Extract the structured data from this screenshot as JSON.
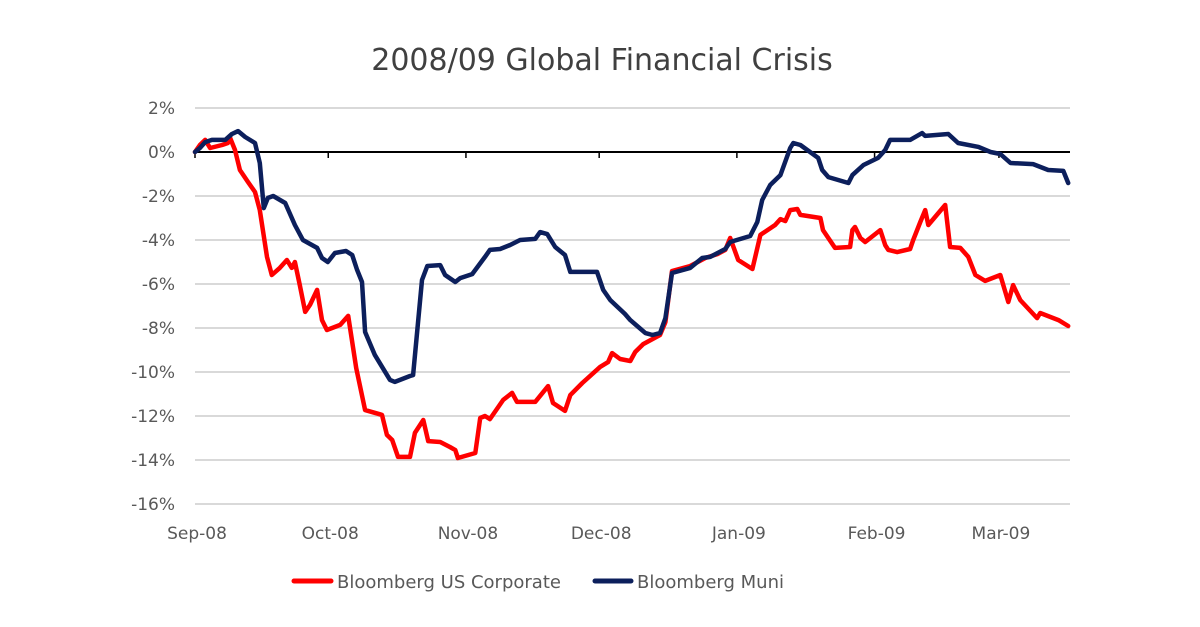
{
  "chart_data": {
    "type": "line",
    "title": "2008/09 Global Financial Crisis",
    "xlabel": "",
    "ylabel": "",
    "x_unit": "days since 1 Sep 2008",
    "xlim": [
      0,
      197
    ],
    "ylim": [
      -16,
      2
    ],
    "y_ticks": [
      2,
      0,
      -2,
      -4,
      -6,
      -8,
      -10,
      -12,
      -14,
      -16
    ],
    "y_tick_labels": [
      "2%",
      "0%",
      "-2%",
      "-4%",
      "-6%",
      "-8%",
      "-10%",
      "-12%",
      "-14%",
      "-16%"
    ],
    "x_ticks": [
      0,
      30,
      61,
      91,
      122,
      153,
      181
    ],
    "x_tick_labels": [
      "Sep-08",
      "Oct-08",
      "Nov-08",
      "Dec-08",
      "Jan-09",
      "Feb-09",
      "Mar-09"
    ],
    "grid": true,
    "legend_position": "bottom",
    "series": [
      {
        "name": "Bloomberg US Corporate",
        "color": "#ff0000",
        "points": [
          [
            0,
            0
          ],
          [
            1.1,
            0.32
          ],
          [
            2.3,
            0.55
          ],
          [
            3.4,
            0.18
          ],
          [
            6.1,
            0.32
          ],
          [
            7.4,
            0.41
          ],
          [
            7.9,
            0.64
          ],
          [
            9.0,
            0.09
          ],
          [
            10.1,
            -0.82
          ],
          [
            11.9,
            -1.36
          ],
          [
            13.5,
            -1.82
          ],
          [
            14.6,
            -2.64
          ],
          [
            16.2,
            -4.77
          ],
          [
            17.3,
            -5.59
          ],
          [
            19.1,
            -5.27
          ],
          [
            20.7,
            -4.91
          ],
          [
            21.8,
            -5.27
          ],
          [
            22.5,
            -5.0
          ],
          [
            23.6,
            -6.05
          ],
          [
            24.8,
            -7.27
          ],
          [
            25.9,
            -6.95
          ],
          [
            27.5,
            -6.27
          ],
          [
            28.6,
            -7.64
          ],
          [
            29.7,
            -8.09
          ],
          [
            32.7,
            -7.86
          ],
          [
            34.5,
            -7.45
          ],
          [
            36.3,
            -9.82
          ],
          [
            38.3,
            -11.73
          ],
          [
            42.1,
            -11.95
          ],
          [
            43.2,
            -12.86
          ],
          [
            44.4,
            -13.09
          ],
          [
            45.7,
            -13.86
          ],
          [
            48.4,
            -13.86
          ],
          [
            49.5,
            -12.77
          ],
          [
            51.4,
            -12.18
          ],
          [
            52.5,
            -13.14
          ],
          [
            55.2,
            -13.18
          ],
          [
            57.4,
            -13.41
          ],
          [
            58.6,
            -13.55
          ],
          [
            59.2,
            -13.91
          ],
          [
            63.1,
            -13.68
          ],
          [
            64.2,
            -12.09
          ],
          [
            65.3,
            -12.0
          ],
          [
            66.4,
            -12.14
          ],
          [
            69.4,
            -11.27
          ],
          [
            71.4,
            -10.95
          ],
          [
            72.5,
            -11.36
          ],
          [
            76.6,
            -11.36
          ],
          [
            79.5,
            -10.64
          ],
          [
            80.6,
            -11.41
          ],
          [
            83.3,
            -11.77
          ],
          [
            84.5,
            -11.05
          ],
          [
            87.2,
            -10.5
          ],
          [
            91.2,
            -9.77
          ],
          [
            93.0,
            -9.55
          ],
          [
            93.9,
            -9.14
          ],
          [
            95.7,
            -9.41
          ],
          [
            98.0,
            -9.5
          ],
          [
            99.1,
            -9.09
          ],
          [
            100.9,
            -8.73
          ],
          [
            104.7,
            -8.32
          ],
          [
            105.9,
            -7.73
          ],
          [
            107.4,
            -5.41
          ],
          [
            111.5,
            -5.18
          ],
          [
            114.9,
            -4.82
          ],
          [
            117.6,
            -4.64
          ],
          [
            119.4,
            -4.45
          ],
          [
            120.5,
            -3.91
          ],
          [
            122.3,
            -4.91
          ],
          [
            125.5,
            -5.32
          ],
          [
            127.3,
            -3.77
          ],
          [
            130.6,
            -3.32
          ],
          [
            131.8,
            -3.05
          ],
          [
            132.9,
            -3.14
          ],
          [
            134.0,
            -2.64
          ],
          [
            135.6,
            -2.59
          ],
          [
            136.3,
            -2.86
          ],
          [
            140.8,
            -3.0
          ],
          [
            141.4,
            -3.55
          ],
          [
            144.1,
            -4.36
          ],
          [
            147.5,
            -4.32
          ],
          [
            148.0,
            -3.55
          ],
          [
            148.6,
            -3.41
          ],
          [
            149.8,
            -3.91
          ],
          [
            150.9,
            -4.09
          ],
          [
            154.3,
            -3.55
          ],
          [
            155.4,
            -4.23
          ],
          [
            156.1,
            -4.45
          ],
          [
            158.1,
            -4.55
          ],
          [
            161.0,
            -4.41
          ],
          [
            161.7,
            -4.0
          ],
          [
            163.3,
            -3.18
          ],
          [
            164.4,
            -2.64
          ],
          [
            165.1,
            -3.32
          ],
          [
            168.9,
            -2.41
          ],
          [
            170.0,
            -4.32
          ],
          [
            172.3,
            -4.36
          ],
          [
            174.1,
            -4.77
          ],
          [
            175.7,
            -5.59
          ],
          [
            177.9,
            -5.86
          ],
          [
            181.3,
            -5.59
          ],
          [
            183.1,
            -6.82
          ],
          [
            184.2,
            -6.05
          ],
          [
            185.8,
            -6.73
          ],
          [
            189.6,
            -7.55
          ],
          [
            190.3,
            -7.32
          ],
          [
            194.4,
            -7.64
          ],
          [
            196.6,
            -7.91
          ]
        ]
      },
      {
        "name": "Bloomberg Muni",
        "color": "#0c1f5c",
        "points": [
          [
            0,
            0
          ],
          [
            1.1,
            0.18
          ],
          [
            2.3,
            0.45
          ],
          [
            3.8,
            0.55
          ],
          [
            6.8,
            0.55
          ],
          [
            8.3,
            0.82
          ],
          [
            9.7,
            0.95
          ],
          [
            11.3,
            0.68
          ],
          [
            13.5,
            0.41
          ],
          [
            14.6,
            -0.5
          ],
          [
            15.5,
            -2.55
          ],
          [
            16.4,
            -2.09
          ],
          [
            17.6,
            -2.0
          ],
          [
            20.3,
            -2.32
          ],
          [
            22.5,
            -3.32
          ],
          [
            24.3,
            -4.0
          ],
          [
            27.5,
            -4.36
          ],
          [
            28.6,
            -4.82
          ],
          [
            29.9,
            -5.0
          ],
          [
            31.5,
            -4.59
          ],
          [
            34.0,
            -4.5
          ],
          [
            35.4,
            -4.68
          ],
          [
            36.5,
            -5.36
          ],
          [
            37.6,
            -5.91
          ],
          [
            38.3,
            -8.18
          ],
          [
            40.5,
            -9.23
          ],
          [
            43.9,
            -10.36
          ],
          [
            45.0,
            -10.45
          ],
          [
            48.4,
            -10.18
          ],
          [
            49.1,
            -10.14
          ],
          [
            51.1,
            -5.82
          ],
          [
            52.3,
            -5.18
          ],
          [
            55.2,
            -5.14
          ],
          [
            56.3,
            -5.59
          ],
          [
            58.6,
            -5.91
          ],
          [
            59.7,
            -5.73
          ],
          [
            62.4,
            -5.55
          ],
          [
            65.3,
            -4.77
          ],
          [
            66.4,
            -4.45
          ],
          [
            68.7,
            -4.41
          ],
          [
            70.9,
            -4.23
          ],
          [
            73.2,
            -4.0
          ],
          [
            76.6,
            -3.95
          ],
          [
            77.7,
            -3.64
          ],
          [
            79.3,
            -3.73
          ],
          [
            81.1,
            -4.32
          ],
          [
            83.3,
            -4.68
          ],
          [
            84.5,
            -5.45
          ],
          [
            90.5,
            -5.45
          ],
          [
            91.9,
            -6.27
          ],
          [
            93.5,
            -6.73
          ],
          [
            96.8,
            -7.36
          ],
          [
            98.0,
            -7.64
          ],
          [
            101.4,
            -8.23
          ],
          [
            103.0,
            -8.32
          ],
          [
            104.7,
            -8.23
          ],
          [
            105.9,
            -7.55
          ],
          [
            107.4,
            -5.5
          ],
          [
            111.5,
            -5.27
          ],
          [
            114.2,
            -4.82
          ],
          [
            116.0,
            -4.77
          ],
          [
            119.4,
            -4.41
          ],
          [
            120.5,
            -4.09
          ],
          [
            125.0,
            -3.82
          ],
          [
            126.6,
            -3.18
          ],
          [
            127.7,
            -2.18
          ],
          [
            129.5,
            -1.5
          ],
          [
            131.8,
            -1.05
          ],
          [
            134.0,
            0.18
          ],
          [
            134.7,
            0.41
          ],
          [
            136.3,
            0.32
          ],
          [
            140.3,
            -0.27
          ],
          [
            141.2,
            -0.82
          ],
          [
            142.6,
            -1.14
          ],
          [
            147.1,
            -1.41
          ],
          [
            148.0,
            -1.05
          ],
          [
            150.5,
            -0.59
          ],
          [
            153.8,
            -0.27
          ],
          [
            155.4,
            0.09
          ],
          [
            156.5,
            0.55
          ],
          [
            161.0,
            0.55
          ],
          [
            163.7,
            0.86
          ],
          [
            164.4,
            0.73
          ],
          [
            169.6,
            0.82
          ],
          [
            171.8,
            0.41
          ],
          [
            176.4,
            0.23
          ],
          [
            179.1,
            0.0
          ],
          [
            181.3,
            -0.09
          ],
          [
            183.6,
            -0.5
          ],
          [
            188.7,
            -0.55
          ],
          [
            192.1,
            -0.82
          ],
          [
            195.5,
            -0.86
          ],
          [
            196.6,
            -1.41
          ]
        ]
      }
    ]
  }
}
